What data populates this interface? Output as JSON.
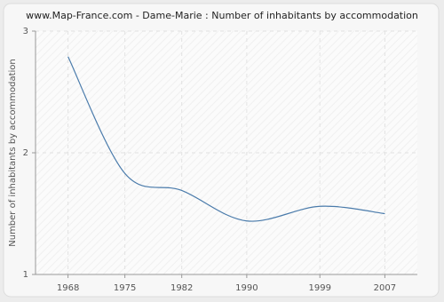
{
  "chart_data": {
    "type": "line",
    "title": "www.Map-France.com - Dame-Marie : Number of inhabitants by accommodation",
    "y_label": "Number of inhabitants by accommodation",
    "x": [
      1968,
      1975,
      1982,
      1990,
      1999,
      2007
    ],
    "series": [
      {
        "name": "Dame-Marie",
        "color": "#4a7bab",
        "values": [
          2.79,
          1.83,
          1.69,
          1.44,
          1.56,
          1.5
        ]
      }
    ],
    "xlim": [
      1964,
      2011
    ],
    "xticks": [
      1968,
      1975,
      1982,
      1990,
      1999,
      2007
    ],
    "ylim": [
      1,
      3
    ],
    "yticks": [
      1,
      2,
      3
    ],
    "grid": true
  }
}
